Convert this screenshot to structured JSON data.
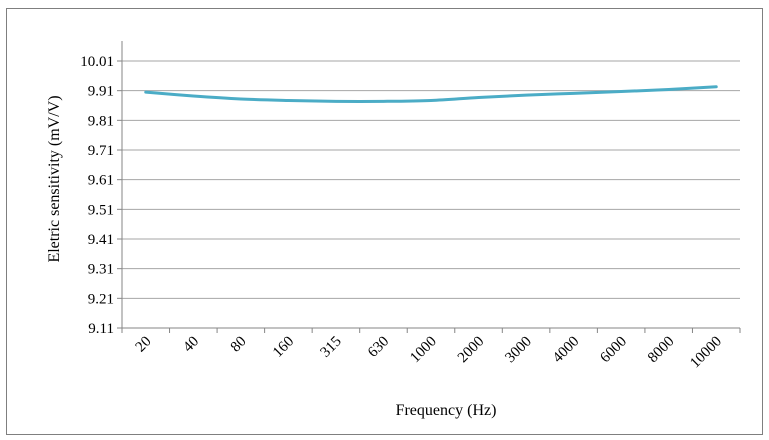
{
  "chart_data": {
    "type": "line",
    "title": "",
    "xlabel": "Frequency (Hz)",
    "ylabel": "Eletric sensitivity (mV/V)",
    "categories": [
      "20",
      "40",
      "80",
      "160",
      "315",
      "630",
      "1000",
      "2000",
      "3000",
      "4000",
      "6000",
      "8000",
      "10000"
    ],
    "y_ticks": [
      "9.11",
      "9.21",
      "9.31",
      "9.41",
      "9.51",
      "9.61",
      "9.71",
      "9.81",
      "9.91",
      "10.01"
    ],
    "ylim": [
      9.11,
      10.01
    ],
    "grid": "horizontal",
    "legend": "none",
    "series": [
      {
        "values": [
          9.905,
          9.892,
          9.882,
          9.877,
          9.874,
          9.874,
          9.877,
          9.887,
          9.895,
          9.901,
          9.907,
          9.914,
          9.923
        ],
        "color": "#4bacc6"
      }
    ]
  }
}
